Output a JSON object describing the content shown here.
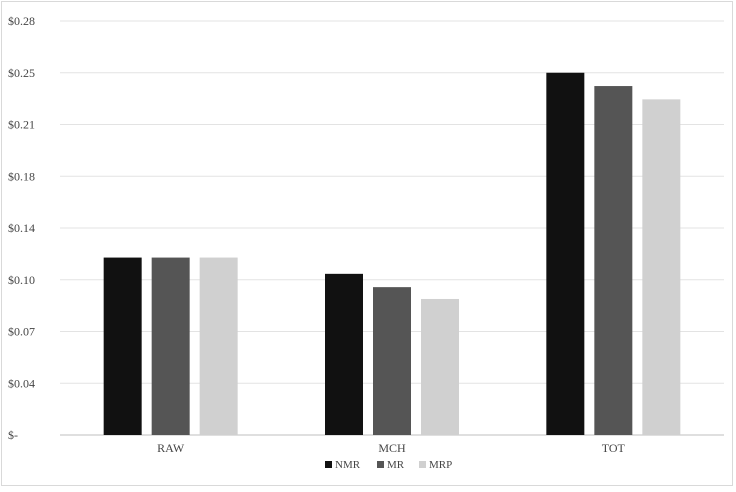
{
  "chart_data": {
    "type": "bar",
    "title": "",
    "xlabel": "",
    "ylabel": "",
    "categories": [
      "RAW",
      "MCH",
      "TOT"
    ],
    "series": [
      {
        "name": "NMR",
        "color": "#111111",
        "values": [
          0.12,
          0.109,
          0.245
        ]
      },
      {
        "name": "MR",
        "color": "#555555",
        "values": [
          0.12,
          0.1,
          0.236
        ]
      },
      {
        "name": "MRP",
        "color": "#d0d0d0",
        "values": [
          0.12,
          0.092,
          0.227
        ]
      }
    ],
    "ylim": [
      0,
      0.28
    ],
    "ytick_labels": [
      "$-",
      "$0.04",
      "$0.07",
      "$0.10",
      "$0.14",
      "$0.18",
      "$0.21",
      "$0.25",
      "$0.28"
    ],
    "grid": true,
    "legend": "bottom-center"
  }
}
